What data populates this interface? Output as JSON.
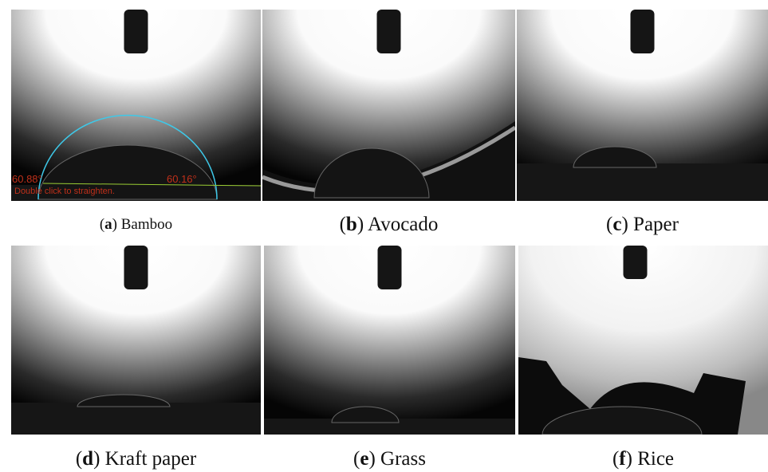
{
  "panels": [
    {
      "caption": "(a) Bamboo",
      "letter": "a",
      "overlay": {
        "left_angle": "60.88°",
        "right_angle": "60.16°",
        "hint": "Double click to straighten."
      }
    },
    {
      "caption": "(b) Avocado",
      "letter": "b"
    },
    {
      "caption": "(c) Paper",
      "letter": "c"
    },
    {
      "caption": "(d) Kraft paper",
      "letter": "d"
    },
    {
      "caption": "(e) Grass",
      "letter": "e"
    },
    {
      "caption": "(f) Rice",
      "letter": "f"
    }
  ]
}
